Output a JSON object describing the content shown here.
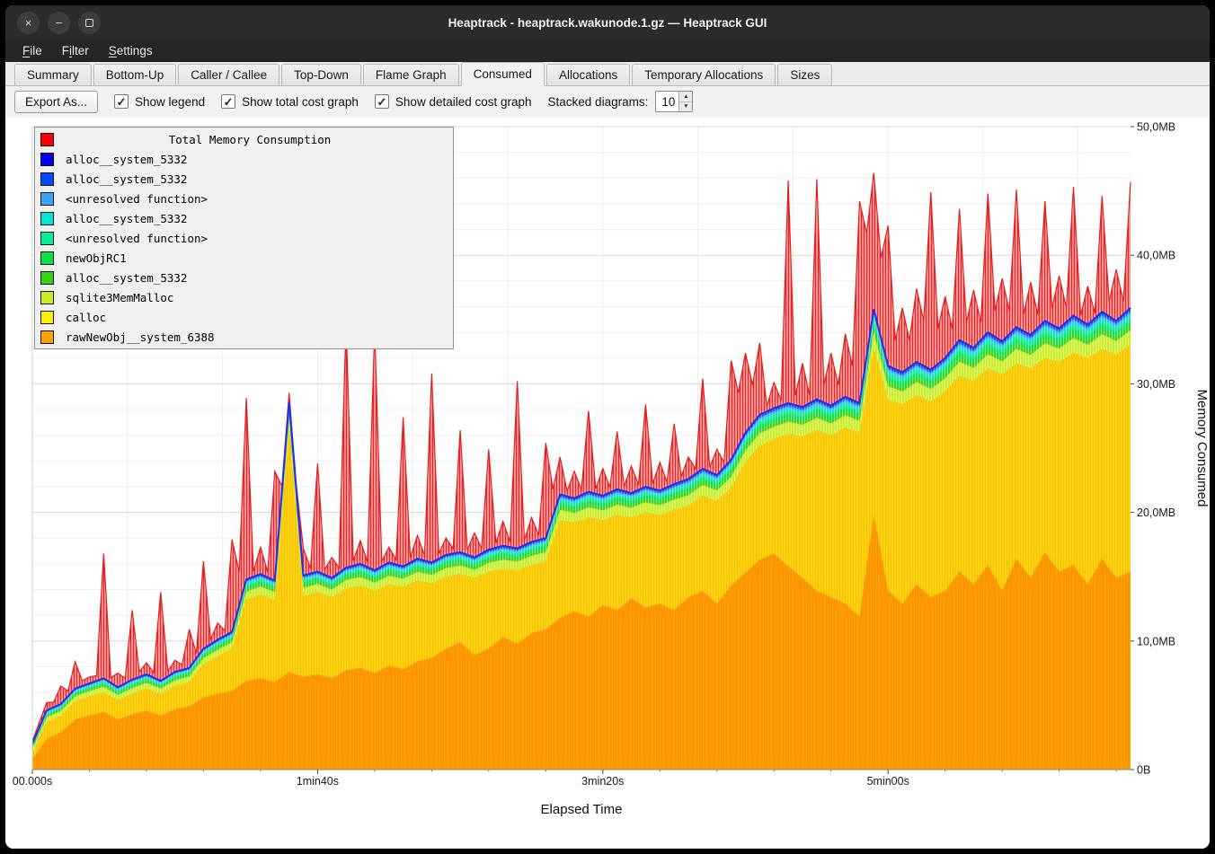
{
  "window": {
    "title": "Heaptrack - heaptrack.wakunode.1.gz — Heaptrack GUI",
    "buttons": [
      {
        "name": "close",
        "glyph": "×"
      },
      {
        "name": "minimize",
        "glyph": "−"
      },
      {
        "name": "maximize",
        "glyph": ""
      }
    ]
  },
  "menubar": {
    "items": [
      {
        "label": "File",
        "mnemonic": 0
      },
      {
        "label": "Filter",
        "mnemonic": 1
      },
      {
        "label": "Settings",
        "mnemonic": 0
      }
    ]
  },
  "tabs": {
    "items": [
      "Summary",
      "Bottom-Up",
      "Caller / Callee",
      "Top-Down",
      "Flame Graph",
      "Consumed",
      "Allocations",
      "Temporary Allocations",
      "Sizes"
    ],
    "active_index": 5
  },
  "toolbar": {
    "export_label": "Export As...",
    "check_glyph": "✓",
    "checkboxes": [
      {
        "label": "Show legend",
        "checked": true
      },
      {
        "label": "Show total cost graph",
        "checked": true
      },
      {
        "label": "Show detailed cost graph",
        "checked": true
      }
    ],
    "stacked_label": "Stacked diagrams:",
    "spinner": {
      "value": "10",
      "up_glyph": "▲",
      "down_glyph": "▼"
    }
  },
  "chart_data": {
    "type": "area",
    "title": "Total Memory Consumption",
    "xlabel": "Elapsed Time",
    "ylabel": "Memory Consumed",
    "xlim_s": [
      0,
      385
    ],
    "ylim_mb": [
      0,
      50
    ],
    "x_ticks": [
      {
        "s": 0,
        "label": "00.000s"
      },
      {
        "s": 100,
        "label": "1min40s"
      },
      {
        "s": 200,
        "label": "3min20s"
      },
      {
        "s": 300,
        "label": "5min00s"
      }
    ],
    "y_ticks": [
      {
        "mb": 0,
        "label": "0B"
      },
      {
        "mb": 10,
        "label": "10,0MB"
      },
      {
        "mb": 20,
        "label": "20,0MB"
      },
      {
        "mb": 30,
        "label": "30,0MB"
      },
      {
        "mb": 40,
        "label": "40,0MB"
      },
      {
        "mb": 50,
        "label": "50,0MB"
      }
    ],
    "grid": {
      "x_step_s": 33.333,
      "y_minor_mb": 2,
      "y_major_mb": 10
    },
    "x_s": [
      0,
      5,
      10,
      15,
      20,
      25,
      30,
      35,
      40,
      45,
      50,
      55,
      60,
      65,
      70,
      75,
      80,
      85,
      90,
      95,
      100,
      105,
      110,
      115,
      120,
      125,
      130,
      135,
      140,
      145,
      150,
      155,
      160,
      165,
      170,
      175,
      180,
      185,
      190,
      195,
      200,
      205,
      210,
      215,
      220,
      225,
      230,
      235,
      240,
      245,
      250,
      255,
      260,
      265,
      270,
      275,
      280,
      285,
      290,
      295,
      300,
      305,
      310,
      315,
      320,
      325,
      330,
      335,
      340,
      345,
      350,
      355,
      360,
      365,
      370,
      375,
      380,
      385
    ],
    "stacked_series": [
      {
        "name": "rawNewObj__system_6388",
        "color": "#ff9d00",
        "hatch_line": "rgba(222,118,0,0.28)",
        "top_mb": [
          0.8,
          2.4,
          2.9,
          3.9,
          4.2,
          4.5,
          3.9,
          4.3,
          4.6,
          4.2,
          4.7,
          4.9,
          5.6,
          5.9,
          6.1,
          6.9,
          7.1,
          6.8,
          7.6,
          7.2,
          7.4,
          7.1,
          7.7,
          7.9,
          7.5,
          8.1,
          7.8,
          8.4,
          8.7,
          9.4,
          9.9,
          8.9,
          9.4,
          10.3,
          9.8,
          10.6,
          10.9,
          11.8,
          12.3,
          11.9,
          12.8,
          12.4,
          13.3,
          12.6,
          12.9,
          12.4,
          13.4,
          13.9,
          12.9,
          14.3,
          15.3,
          16.3,
          16.8,
          15.8,
          14.9,
          13.9,
          13.4,
          12.9,
          11.9,
          19.8,
          13.9,
          12.9,
          14.4,
          13.4,
          13.9,
          15.4,
          14.4,
          15.9,
          13.9,
          16.4,
          14.9,
          16.9,
          15.4,
          15.9,
          14.4,
          16.4,
          14.9,
          15.4
        ]
      },
      {
        "name": "calloc",
        "color": "#fdd30f",
        "hatch_line": "rgba(240,158,0,0.38)",
        "top_mb": [
          1.3,
          3.7,
          4.2,
          5.3,
          5.7,
          6.0,
          5.4,
          5.9,
          6.3,
          5.9,
          6.5,
          6.8,
          8.2,
          8.8,
          9.4,
          13.2,
          13.6,
          13.2,
          26.4,
          13.5,
          13.8,
          13.4,
          14.1,
          14.3,
          13.9,
          14.4,
          14.2,
          14.7,
          14.5,
          15.0,
          15.2,
          14.9,
          15.4,
          15.6,
          15.5,
          15.9,
          16.2,
          19.4,
          19.2,
          19.6,
          19.4,
          19.8,
          19.6,
          20.0,
          19.8,
          20.2,
          20.5,
          21.3,
          20.9,
          21.9,
          23.9,
          25.2,
          25.7,
          26.1,
          25.9,
          26.4,
          26.0,
          26.6,
          26.2,
          32.8,
          28.8,
          28.4,
          29.1,
          28.6,
          29.4,
          30.6,
          30.2,
          31.2,
          30.7,
          31.6,
          31.2,
          32.0,
          31.7,
          32.4,
          32.0,
          32.7,
          32.3,
          33.0
        ]
      }
    ],
    "detail_fractions": [
      {
        "name": "sqlite3MemMalloc",
        "color": "#c9ee21",
        "frac": 0.4
      },
      {
        "name": "alloc__system_5332",
        "color": "#35d411",
        "frac": 0.12
      },
      {
        "name": "newObjRC1",
        "color": "#0ae04a",
        "frac": 0.15
      },
      {
        "name": "<unresolved function>",
        "color": "#00f099",
        "frac": 0.09
      },
      {
        "name": "alloc__system_5332",
        "color": "#00e6d2",
        "frac": 0.08
      },
      {
        "name": "<unresolved function>",
        "color": "#38a3ff",
        "frac": 0.06
      },
      {
        "name": "alloc__system_5332",
        "color": "#0053ff",
        "frac": 0.06
      },
      {
        "name": "alloc__system_5332",
        "color": "#0000ef",
        "frac": 0.04
      }
    ],
    "detail_hatch": "rgba(255,255,255,0.42)",
    "solid_total_edge_color": "#1d2ff0",
    "solid_total_top_mb": [
      2.0,
      4.6,
      5.1,
      6.3,
      6.7,
      7.1,
      6.4,
      7.0,
      7.4,
      6.9,
      7.6,
      7.9,
      9.4,
      10.1,
      10.7,
      14.8,
      15.2,
      14.7,
      28.6,
      15.1,
      15.4,
      14.9,
      15.7,
      16.0,
      15.5,
      16.1,
      15.8,
      16.4,
      16.1,
      16.7,
      16.9,
      16.5,
      17.1,
      17.4,
      17.2,
      17.7,
      18.0,
      21.4,
      21.1,
      21.6,
      21.3,
      21.8,
      21.5,
      22.0,
      21.7,
      22.2,
      22.6,
      23.4,
      22.9,
      24.1,
      26.2,
      27.6,
      28.1,
      28.5,
      28.2,
      28.8,
      28.3,
      29.0,
      28.5,
      35.8,
      31.4,
      30.9,
      31.7,
      31.1,
      32.0,
      33.4,
      32.8,
      34.0,
      33.3,
      34.4,
      33.8,
      34.9,
      34.3,
      35.3,
      34.6,
      35.6,
      34.9,
      35.9
    ],
    "total_cost": {
      "name": "Total Memory Consumption",
      "line_color": "#e61b1b",
      "hatch_bg": "#ffc1c1",
      "hatch_line": "#ee2222",
      "values_mb": [
        2.2,
        5.2,
        6.5,
        8.4,
        7.2,
        16.8,
        7.5,
        12.4,
        8.3,
        13.8,
        8.5,
        10.9,
        16.2,
        11.4,
        17.9,
        28.9,
        17.3,
        23.2,
        29.3,
        17.2,
        23.8,
        16.5,
        34.8,
        17.8,
        34.2,
        17.3,
        27.4,
        18.2,
        30.8,
        18.0,
        26.4,
        18.4,
        24.9,
        19.3,
        30.2,
        19.6,
        25.4,
        24.3,
        23.2,
        27.9,
        23.4,
        26.3,
        23.6,
        28.4,
        23.9,
        26.9,
        24.3,
        30.4,
        24.9,
        31.8,
        32.4,
        33.2,
        30.1,
        45.8,
        31.6,
        45.9,
        32.4,
        33.9,
        44.2,
        46.4,
        42.3,
        35.9,
        37.4,
        44.9,
        36.8,
        43.6,
        37.3,
        44.8,
        38.2,
        45.1,
        37.9,
        44.2,
        38.4,
        45.3,
        37.6,
        44.6,
        38.9,
        45.7
      ]
    },
    "legend": [
      {
        "label": "Total Memory Consumption",
        "color": "#ff0000",
        "title": true
      },
      {
        "label": "alloc__system_5332",
        "color": "#0000f0"
      },
      {
        "label": "alloc__system_5332",
        "color": "#0049ff"
      },
      {
        "label": "<unresolved function>",
        "color": "#38a3ff"
      },
      {
        "label": "alloc__system_5332",
        "color": "#00e6d2"
      },
      {
        "label": "<unresolved function>",
        "color": "#00f099"
      },
      {
        "label": "newObjRC1",
        "color": "#0ae04a"
      },
      {
        "label": "alloc__system_5332",
        "color": "#35d411"
      },
      {
        "label": "sqlite3MemMalloc",
        "color": "#c9ee21"
      },
      {
        "label": "calloc",
        "color": "#ffef00"
      },
      {
        "label": "rawNewObj__system_6388",
        "color": "#ffa200"
      }
    ]
  }
}
